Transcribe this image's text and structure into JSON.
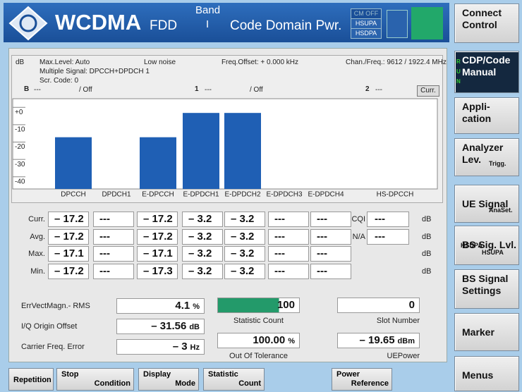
{
  "header": {
    "title": "WCDMA",
    "standard": "FDD",
    "band_label": "Band",
    "band": "I",
    "mode": "Code Domain Pwr.",
    "badges": [
      "CM OFF",
      "HSUPA",
      "HSDPA"
    ]
  },
  "softkeys": [
    {
      "lines": [
        "Connect",
        "Control"
      ]
    },
    {
      "lines": [
        "CDP/Code",
        "Manual"
      ],
      "run": [
        "R",
        "U",
        "N"
      ]
    },
    {
      "lines": [
        "Appli-",
        "cation"
      ]
    },
    {
      "lines": [
        "Analyzer",
        "Lev."
      ],
      "sub": [
        "Trigg."
      ]
    },
    {
      "lines": [
        "UE Signal"
      ],
      "sub": [
        "AnaSet."
      ]
    },
    {
      "lines": [
        "BS Sig. Lvl."
      ],
      "sub": [
        "HSDPA",
        "HSUPA"
      ]
    },
    {
      "lines": [
        "BS Signal",
        "Settings"
      ]
    },
    {
      "lines": [
        "Marker"
      ]
    },
    {
      "lines": [
        "Menus"
      ]
    }
  ],
  "info": {
    "unit": "dB",
    "max_level": "Max.Level: Auto",
    "noise": "Low noise",
    "freq_offset": "Freq.Offset: + 0.000  kHz",
    "chan_freq": "Chan./Freq.: 9612 / 1922.4  MHz",
    "signal": "Multiple Signal: DPCCH+DPDCH 1",
    "scr_code": "Scr. Code: 0"
  },
  "markers": [
    {
      "icon": "B",
      "value": "---",
      "state": "/ Off"
    },
    {
      "icon": "1",
      "value": "---",
      "state": "/ Off"
    },
    {
      "icon": "2",
      "value": "---",
      "state": "/ Off"
    }
  ],
  "curr_button": "Curr.",
  "chart": {
    "type": "bar",
    "categories": [
      "DPCCH",
      "DPDCH1",
      "E-DPCCH",
      "E-DPDCH1",
      "E-DPDCH2",
      "E-DPDCH3",
      "E-DPDCH4",
      "HS-DPCCH"
    ],
    "values": [
      -17.2,
      null,
      -17.2,
      -3.2,
      -3.2,
      null,
      null,
      null
    ],
    "color": "#1f5fb4",
    "ylim": [
      -47,
      5
    ],
    "yticks": [
      {
        "value": 0,
        "label": "+0"
      },
      -10,
      -20,
      -30,
      -40
    ]
  },
  "table": {
    "rows": [
      {
        "label": "Curr.",
        "cells": [
          "– 17.2",
          "---",
          "– 17.2",
          "– 3.2",
          "– 3.2",
          "---",
          "---"
        ],
        "extra_label": "CQI",
        "extra_value": "---",
        "unit": "dB"
      },
      {
        "label": "Avg.",
        "cells": [
          "– 17.2",
          "---",
          "– 17.2",
          "– 3.2",
          "– 3.2",
          "---",
          "---"
        ],
        "extra_label": "N/A",
        "extra_value": "---",
        "unit": "dB"
      },
      {
        "label": "Max.",
        "cells": [
          "– 17.1",
          "---",
          "– 17.1",
          "– 3.2",
          "– 3.2",
          "---",
          "---"
        ],
        "unit": "dB"
      },
      {
        "label": "Min.",
        "cells": [
          "– 17.2",
          "---",
          "– 17.3",
          "– 3.2",
          "– 3.2",
          "---",
          "---"
        ],
        "unit": "dB"
      }
    ]
  },
  "results": {
    "left": [
      {
        "label": "ErrVectMagn.- RMS",
        "value": "4.1",
        "unit": "%"
      },
      {
        "label": "I/Q Origin Offset",
        "value": "– 31.56",
        "unit": "dB"
      },
      {
        "label": "Carrier Freq. Error",
        "value": "– 3",
        "unit": "Hz"
      }
    ],
    "middle": [
      {
        "value": "100",
        "caption": "Statistic Count"
      },
      {
        "value": "100.00",
        "unit": "%",
        "caption": "Out Of Tolerance"
      }
    ],
    "right": [
      {
        "value": "0",
        "caption": "Slot Number"
      },
      {
        "value": "– 19.65",
        "unit": "dBm",
        "caption": "UEPower"
      }
    ]
  },
  "bottom_buttons": [
    {
      "lines": [
        "Repetition"
      ]
    },
    {
      "lines": [
        "Stop",
        "Condition"
      ]
    },
    {
      "lines": [
        "Display",
        "Mode"
      ]
    },
    {
      "lines": [
        "Statistic",
        "Count"
      ]
    },
    {
      "lines": [
        "Power",
        "Reference"
      ]
    }
  ]
}
